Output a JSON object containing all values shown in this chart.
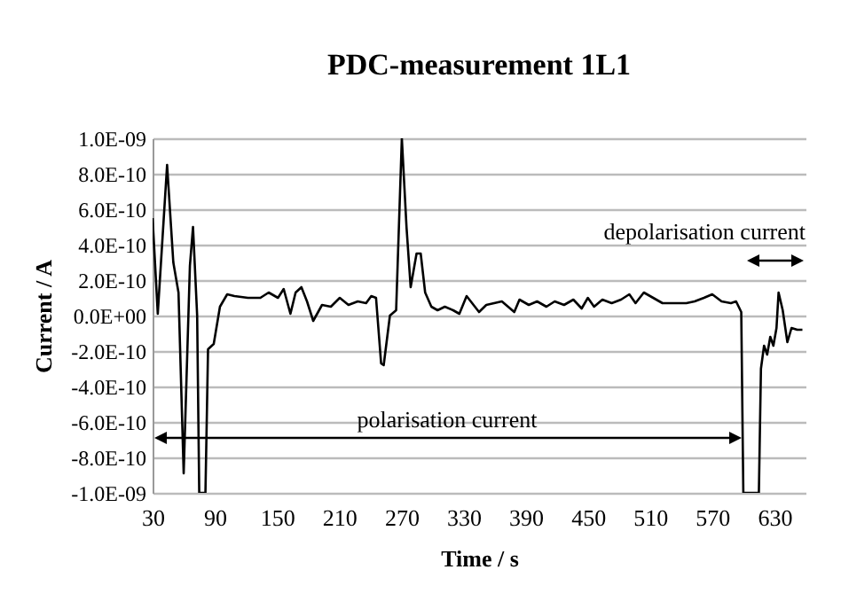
{
  "chart_data": {
    "type": "line",
    "title": "PDC-measurement 1L1",
    "xlabel": "Time / s",
    "ylabel": "Current / A",
    "x": [
      30,
      35,
      44,
      50,
      55,
      60,
      66,
      69,
      73,
      75,
      81,
      83.5,
      89,
      95,
      102,
      109,
      122,
      134,
      142,
      151,
      156.5,
      163,
      168,
      173.6,
      179,
      185,
      193.5,
      202,
      210.6,
      219,
      228,
      236,
      241,
      245.6,
      250.5,
      253,
      259,
      265,
      270.5,
      275,
      279,
      284.7,
      288.7,
      293,
      299,
      305,
      312,
      320,
      326,
      333,
      345,
      352,
      367,
      379,
      384,
      393,
      401,
      410,
      418,
      427,
      436,
      444,
      450,
      456,
      464,
      473,
      482,
      490,
      496,
      504,
      513,
      522,
      533,
      545,
      553,
      562,
      570,
      579,
      588,
      593,
      598,
      600,
      615,
      617,
      620,
      623,
      626,
      629,
      632,
      634,
      638,
      642.5,
      646.5,
      652,
      657
    ],
    "series": [
      {
        "color": "#000000",
        "values": [
          5.5e-10,
          1e-11,
          8.5e-10,
          3e-10,
          1.3e-10,
          -8.9e-10,
          2.8e-10,
          5e-10,
          0,
          -1e-09,
          -1e-09,
          -1.9e-10,
          -1.6e-10,
          5e-11,
          1.2e-10,
          1.1e-10,
          1e-10,
          1e-10,
          1.3e-10,
          1e-10,
          1.5e-10,
          1e-11,
          1.3e-10,
          1.6e-10,
          8e-11,
          -3e-11,
          6e-11,
          5e-11,
          1e-10,
          6e-11,
          8e-11,
          7e-11,
          1.1e-10,
          1e-10,
          -2.7e-10,
          -2.8e-10,
          0,
          3e-11,
          1e-09,
          5e-10,
          1.6e-10,
          3.5e-10,
          3.5e-10,
          1.3e-10,
          5e-11,
          3e-11,
          5e-11,
          3e-11,
          1e-11,
          1.1e-10,
          2e-11,
          6e-11,
          8e-11,
          2e-11,
          9e-11,
          6e-11,
          8e-11,
          5e-11,
          8e-11,
          6e-11,
          9e-11,
          4e-11,
          1e-10,
          5e-11,
          9e-11,
          7e-11,
          9e-11,
          1.2e-10,
          7e-11,
          1.3e-10,
          1e-10,
          7e-11,
          7e-11,
          7e-11,
          8e-11,
          1e-10,
          1.2e-10,
          8e-11,
          7e-11,
          8e-11,
          2e-11,
          -1e-09,
          -1e-09,
          -3e-10,
          -1.7e-10,
          -2.2e-10,
          -1.2e-10,
          -1.7e-10,
          -7e-11,
          1.3e-10,
          3e-11,
          -1.5e-10,
          -7e-11,
          -8e-11,
          -8e-11
        ]
      }
    ],
    "xlim": [
      30,
      660
    ],
    "xticks": [
      30,
      90,
      150,
      210,
      270,
      330,
      390,
      450,
      510,
      570,
      630
    ],
    "ylim": [
      -1e-09,
      1e-09
    ],
    "yticks": [
      {
        "value": -1e-09,
        "label": "-1.0E-09"
      },
      {
        "value": -8e-10,
        "label": "-8.0E-10"
      },
      {
        "value": -6e-10,
        "label": "-6.0E-10"
      },
      {
        "value": -4e-10,
        "label": "-4.0E-10"
      },
      {
        "value": -2e-10,
        "label": "-2.0E-10"
      },
      {
        "value": 0,
        "label": "0.0E+00"
      },
      {
        "value": 2e-10,
        "label": "2.0E-10"
      },
      {
        "value": 4e-10,
        "label": "4.0E-10"
      },
      {
        "value": 6e-10,
        "label": "6.0E-10"
      },
      {
        "value": 8e-10,
        "label": "8.0E-10"
      },
      {
        "value": 1e-09,
        "label": "1.0E-09"
      }
    ],
    "grid": "y",
    "annotations": [
      "polarisation current",
      "depolarisation current"
    ]
  }
}
